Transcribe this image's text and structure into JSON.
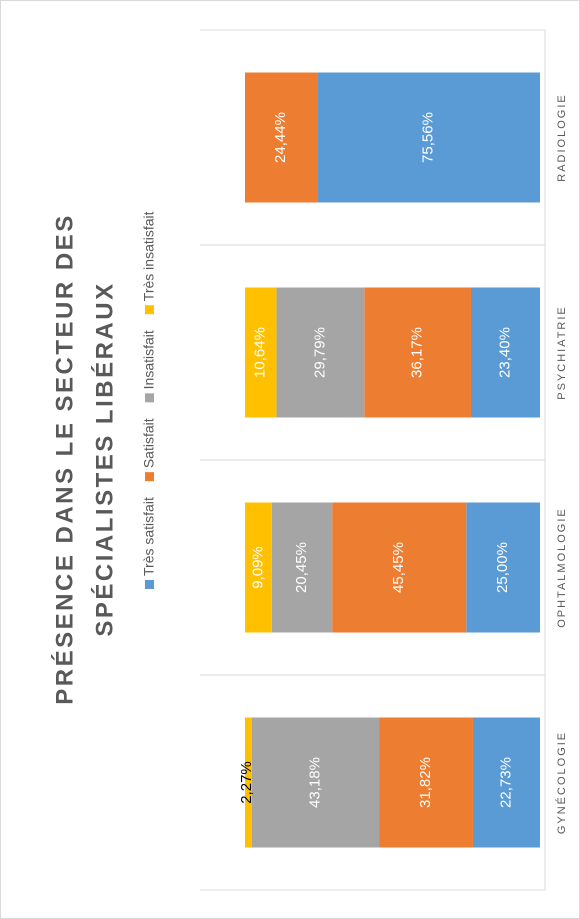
{
  "chart_data": {
    "type": "stacked_bar_100",
    "title": [
      "PRÉSENCE DANS LE SECTEUR DES",
      "SPÉCIALISTES LIBÉRAUX"
    ],
    "categories": [
      "GYNÉCOLOGIE",
      "OPHTALMOLOGIE",
      "PSYCHIATRIE",
      "RADIOLOGIE"
    ],
    "series": [
      {
        "name": "Très satisfait",
        "color": "#5b9bd5",
        "values": [
          22.73,
          25.0,
          23.4,
          75.56
        ],
        "value_labels": [
          "22,73%",
          "25,00%",
          "23,40%",
          "75,56%"
        ]
      },
      {
        "name": "Satisfait",
        "color": "#ed7d31",
        "values": [
          31.82,
          45.45,
          36.17,
          24.44
        ],
        "value_labels": [
          "31,82%",
          "45,45%",
          "36,17%",
          "24,44%"
        ]
      },
      {
        "name": "Insatisfait",
        "color": "#a5a5a5",
        "values": [
          43.18,
          20.45,
          29.79,
          null
        ],
        "value_labels": [
          "43,18%",
          "20,45%",
          "29,79%",
          null
        ]
      },
      {
        "name": "Très insatisfait",
        "color": "#ffc000",
        "values": [
          2.27,
          9.09,
          10.64,
          null
        ],
        "value_labels": [
          "2,27%",
          "9,09%",
          "10,64%",
          null
        ]
      }
    ],
    "ylim": [
      0,
      100
    ],
    "legend": "top"
  }
}
